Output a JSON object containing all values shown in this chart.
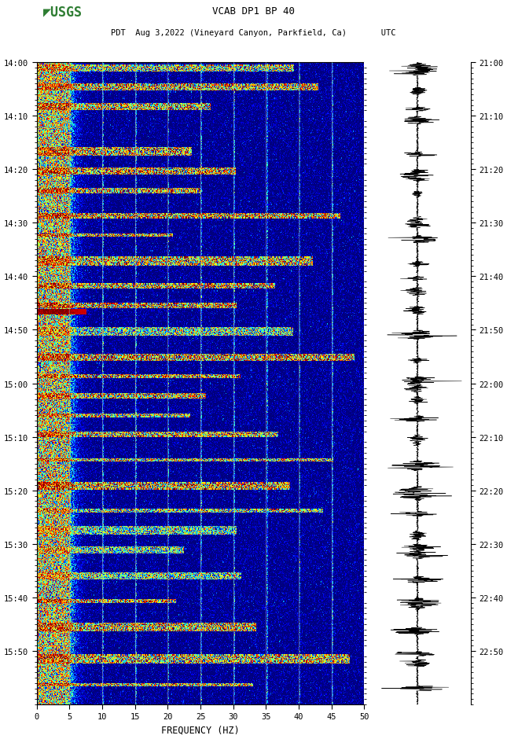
{
  "title_line1": "VCAB DP1 BP 40",
  "title_line2": "PDT  Aug 3,2022 (Vineyard Canyon, Parkfield, Ca)       UTC",
  "left_yticks": [
    "14:00",
    "14:10",
    "14:20",
    "14:30",
    "14:40",
    "14:50",
    "15:00",
    "15:10",
    "15:20",
    "15:30",
    "15:40",
    "15:50"
  ],
  "right_yticks": [
    "21:00",
    "21:10",
    "21:20",
    "21:30",
    "21:40",
    "21:50",
    "22:00",
    "22:10",
    "22:20",
    "22:30",
    "22:40",
    "22:50"
  ],
  "xticks": [
    0,
    5,
    10,
    15,
    20,
    25,
    30,
    35,
    40,
    45,
    50
  ],
  "xlabel": "FREQUENCY (HZ)",
  "freq_min": 0,
  "freq_max": 50,
  "background_color": "#ffffff",
  "colormap": "jet",
  "waveform_color": "#000000",
  "usgs_green": "#2E7D32",
  "figsize": [
    5.52,
    8.92
  ],
  "n_time": 720,
  "n_freq": 500
}
